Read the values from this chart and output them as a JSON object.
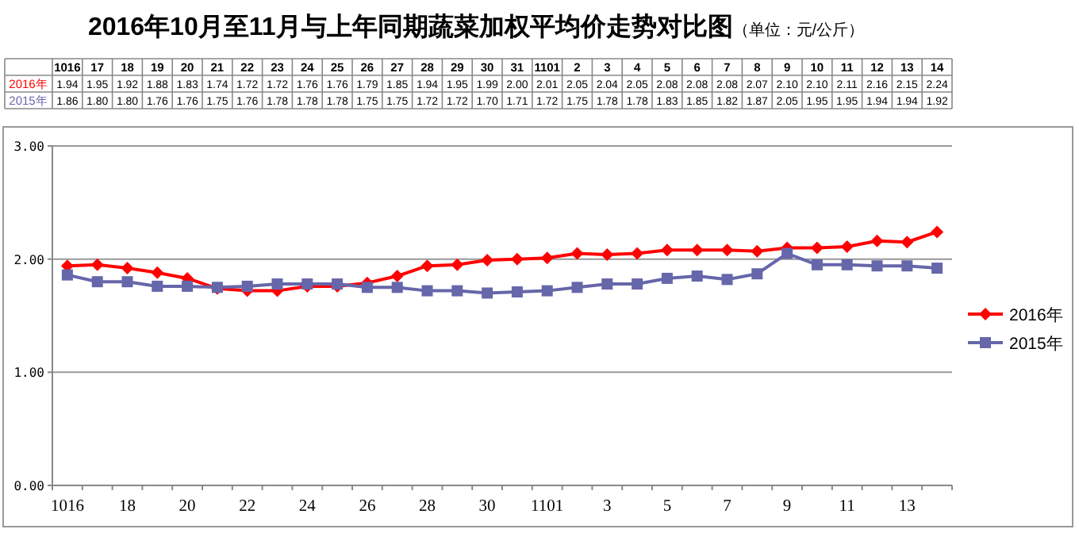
{
  "chart_data": {
    "type": "line",
    "title": "2016年10月至11月与上年同期蔬菜加权平均价走势对比图",
    "subtitle": "（单位：元/公斤）",
    "categories": [
      "1016",
      "17",
      "18",
      "19",
      "20",
      "21",
      "22",
      "23",
      "24",
      "25",
      "26",
      "27",
      "28",
      "29",
      "30",
      "31",
      "1101",
      "2",
      "3",
      "4",
      "5",
      "6",
      "7",
      "8",
      "9",
      "10",
      "11",
      "12",
      "13",
      "14"
    ],
    "series": [
      {
        "name": "2016年",
        "color": "#ff0000",
        "marker": "diamond",
        "values": [
          1.94,
          1.95,
          1.92,
          1.88,
          1.83,
          1.74,
          1.72,
          1.72,
          1.76,
          1.76,
          1.79,
          1.85,
          1.94,
          1.95,
          1.99,
          2.0,
          2.01,
          2.05,
          2.04,
          2.05,
          2.08,
          2.08,
          2.08,
          2.07,
          2.1,
          2.1,
          2.11,
          2.16,
          2.15,
          2.24
        ],
        "value_labels": [
          "1.94",
          "1.95",
          "1.92",
          "1.88",
          "1.83",
          "1.74",
          "1.72",
          "1.72",
          "1.76",
          "1.76",
          "1.79",
          "1.85",
          "1.94",
          "1.95",
          "1.99",
          "2.00",
          "2.01",
          "2.05",
          "2.04",
          "2.05",
          "2.08",
          "2.08",
          "2.08",
          "2.07",
          "2.10",
          "2.10",
          "2.11",
          "2.16",
          "2.15",
          "2.24"
        ]
      },
      {
        "name": "2015年",
        "color": "#6666aa",
        "marker": "square",
        "values": [
          1.86,
          1.8,
          1.8,
          1.76,
          1.76,
          1.75,
          1.76,
          1.78,
          1.78,
          1.78,
          1.75,
          1.75,
          1.72,
          1.72,
          1.7,
          1.71,
          1.72,
          1.75,
          1.78,
          1.78,
          1.83,
          1.85,
          1.82,
          1.87,
          2.05,
          1.95,
          1.95,
          1.94,
          1.94,
          1.92
        ],
        "value_labels": [
          "1.86",
          "1.80",
          "1.80",
          "1.76",
          "1.76",
          "1.75",
          "1.76",
          "1.78",
          "1.78",
          "1.78",
          "1.75",
          "1.75",
          "1.72",
          "1.72",
          "1.70",
          "1.71",
          "1.72",
          "1.75",
          "1.78",
          "1.78",
          "1.83",
          "1.85",
          "1.82",
          "1.87",
          "2.05",
          "1.95",
          "1.95",
          "1.94",
          "1.94",
          "1.92"
        ]
      }
    ],
    "ylim": [
      0,
      3
    ],
    "yticks": [
      {
        "value": 0,
        "label": "0.00"
      },
      {
        "value": 1,
        "label": "1.00"
      },
      {
        "value": 2,
        "label": "2.00"
      },
      {
        "value": 3,
        "label": "3.00"
      }
    ],
    "grid": "y",
    "legend": "right",
    "line_style": "solid"
  }
}
